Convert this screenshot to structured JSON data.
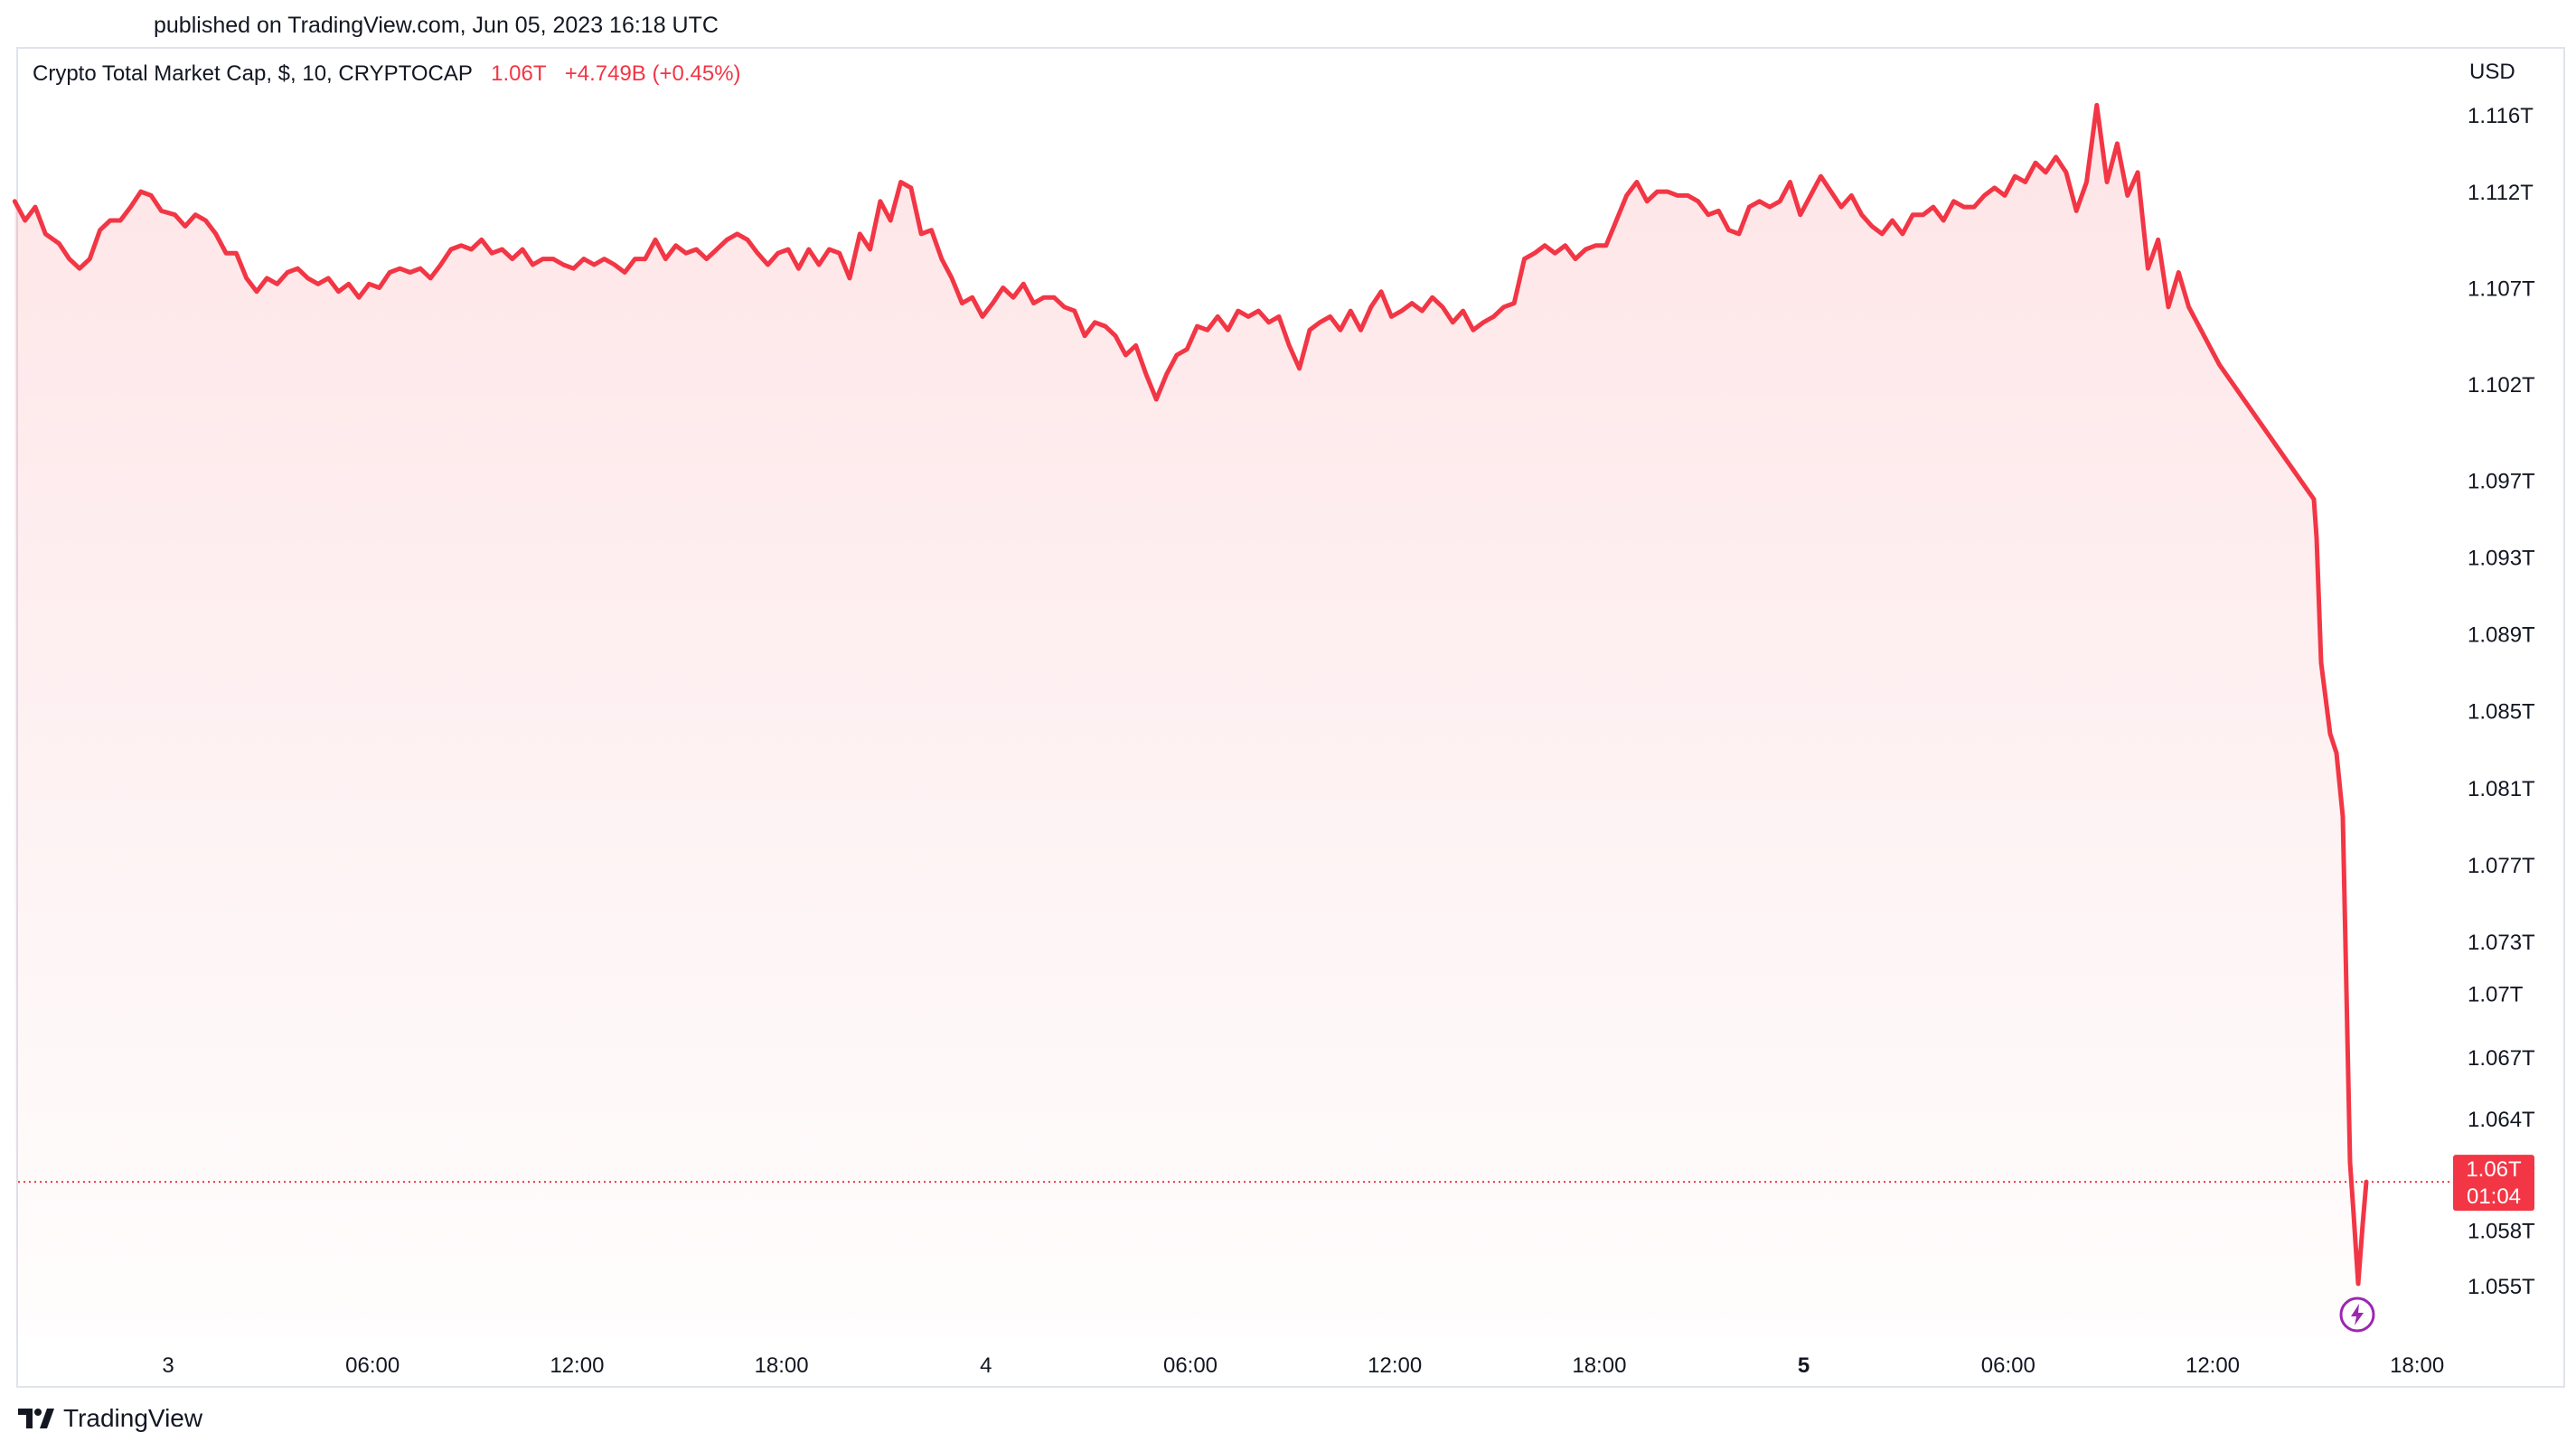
{
  "header": {
    "published": "published on TradingView.com, Jun 05, 2023 16:18 UTC"
  },
  "legend": {
    "symbol": "Crypto Total Market Cap, $, 10, CRYPTOCAP",
    "last": "1.06T",
    "change": "+4.749B (+0.45%)"
  },
  "axis": {
    "currency": "USD"
  },
  "price_label": {
    "value": "1.06T",
    "countdown": "01:04"
  },
  "footer": {
    "brand": "TradingView"
  },
  "colors": {
    "line": "#f23645",
    "fill": "#f23645",
    "badge": "#f23645",
    "alert": "#9c27b0"
  },
  "chart_data": {
    "type": "area",
    "title": "Crypto Total Market Cap, $, 10, CRYPTOCAP",
    "y_unit": "USD (trillions)",
    "ylim": [
      1.052,
      1.118
    ],
    "y_ticks": [
      {
        "label": "1.116T",
        "value": 1.116
      },
      {
        "label": "1.112T",
        "value": 1.112
      },
      {
        "label": "1.107T",
        "value": 1.107
      },
      {
        "label": "1.102T",
        "value": 1.102
      },
      {
        "label": "1.097T",
        "value": 1.097
      },
      {
        "label": "1.093T",
        "value": 1.093
      },
      {
        "label": "1.089T",
        "value": 1.089
      },
      {
        "label": "1.085T",
        "value": 1.085
      },
      {
        "label": "1.081T",
        "value": 1.081
      },
      {
        "label": "1.077T",
        "value": 1.077
      },
      {
        "label": "1.073T",
        "value": 1.073
      },
      {
        "label": "1.07T",
        "value": 1.0703
      },
      {
        "label": "1.067T",
        "value": 1.067
      },
      {
        "label": "1.064T",
        "value": 1.0638
      },
      {
        "label": "1.061T",
        "value": 1.0609
      },
      {
        "label": "1.058T",
        "value": 1.058
      },
      {
        "label": "1.055T",
        "value": 1.0551
      }
    ],
    "x_ticks": [
      {
        "label": "3",
        "hours": 0,
        "bold": false
      },
      {
        "label": "06:00",
        "hours": 6,
        "bold": false
      },
      {
        "label": "12:00",
        "hours": 12,
        "bold": false
      },
      {
        "label": "18:00",
        "hours": 18,
        "bold": false
      },
      {
        "label": "4",
        "hours": 24,
        "bold": false
      },
      {
        "label": "06:00",
        "hours": 30,
        "bold": false
      },
      {
        "label": "12:00",
        "hours": 36,
        "bold": false
      },
      {
        "label": "18:00",
        "hours": 42,
        "bold": false
      },
      {
        "label": "5",
        "hours": 48,
        "bold": true
      },
      {
        "label": "06:00",
        "hours": 54,
        "bold": false
      },
      {
        "label": "12:00",
        "hours": 60,
        "bold": false
      },
      {
        "label": "18:00",
        "hours": 66,
        "bold": false
      }
    ],
    "xlim": [
      -4.5,
      69.0
    ],
    "current_value": 1.0605,
    "series": [
      {
        "values": [
          [
            -4.5,
            1.1115
          ],
          [
            -4.2,
            1.1105
          ],
          [
            -3.9,
            1.1112
          ],
          [
            -3.6,
            1.1098
          ],
          [
            -3.2,
            1.1093
          ],
          [
            -2.9,
            1.1085
          ],
          [
            -2.6,
            1.108
          ],
          [
            -2.3,
            1.1085
          ],
          [
            -2.0,
            1.11
          ],
          [
            -1.7,
            1.1105
          ],
          [
            -1.4,
            1.1105
          ],
          [
            -1.1,
            1.1112
          ],
          [
            -0.8,
            1.112
          ],
          [
            -0.5,
            1.1118
          ],
          [
            -0.2,
            1.111
          ],
          [
            0.2,
            1.1108
          ],
          [
            0.5,
            1.1102
          ],
          [
            0.8,
            1.1108
          ],
          [
            1.1,
            1.1105
          ],
          [
            1.4,
            1.1098
          ],
          [
            1.7,
            1.1088
          ],
          [
            2.0,
            1.1088
          ],
          [
            2.3,
            1.1075
          ],
          [
            2.6,
            1.1068
          ],
          [
            2.9,
            1.1075
          ],
          [
            3.2,
            1.1072
          ],
          [
            3.5,
            1.1078
          ],
          [
            3.8,
            1.108
          ],
          [
            4.1,
            1.1075
          ],
          [
            4.4,
            1.1072
          ],
          [
            4.7,
            1.1075
          ],
          [
            5.0,
            1.1068
          ],
          [
            5.3,
            1.1072
          ],
          [
            5.6,
            1.1065
          ],
          [
            5.9,
            1.1072
          ],
          [
            6.2,
            1.107
          ],
          [
            6.5,
            1.1078
          ],
          [
            6.8,
            1.108
          ],
          [
            7.1,
            1.1078
          ],
          [
            7.4,
            1.108
          ],
          [
            7.7,
            1.1075
          ],
          [
            8.0,
            1.1082
          ],
          [
            8.3,
            1.109
          ],
          [
            8.6,
            1.1092
          ],
          [
            8.9,
            1.109
          ],
          [
            9.2,
            1.1095
          ],
          [
            9.5,
            1.1088
          ],
          [
            9.8,
            1.109
          ],
          [
            10.1,
            1.1085
          ],
          [
            10.4,
            1.109
          ],
          [
            10.7,
            1.1082
          ],
          [
            11.0,
            1.1085
          ],
          [
            11.3,
            1.1085
          ],
          [
            11.6,
            1.1082
          ],
          [
            11.9,
            1.108
          ],
          [
            12.2,
            1.1085
          ],
          [
            12.5,
            1.1082
          ],
          [
            12.8,
            1.1085
          ],
          [
            13.1,
            1.1082
          ],
          [
            13.4,
            1.1078
          ],
          [
            13.7,
            1.1085
          ],
          [
            14.0,
            1.1085
          ],
          [
            14.3,
            1.1095
          ],
          [
            14.6,
            1.1085
          ],
          [
            14.9,
            1.1092
          ],
          [
            15.2,
            1.1088
          ],
          [
            15.5,
            1.109
          ],
          [
            15.8,
            1.1085
          ],
          [
            16.1,
            1.109
          ],
          [
            16.4,
            1.1095
          ],
          [
            16.7,
            1.1098
          ],
          [
            17.0,
            1.1095
          ],
          [
            17.3,
            1.1088
          ],
          [
            17.6,
            1.1082
          ],
          [
            17.9,
            1.1088
          ],
          [
            18.2,
            1.109
          ],
          [
            18.5,
            1.108
          ],
          [
            18.8,
            1.109
          ],
          [
            19.1,
            1.1082
          ],
          [
            19.4,
            1.109
          ],
          [
            19.7,
            1.1088
          ],
          [
            20.0,
            1.1075
          ],
          [
            20.3,
            1.1098
          ],
          [
            20.6,
            1.109
          ],
          [
            20.9,
            1.1115
          ],
          [
            21.2,
            1.1105
          ],
          [
            21.5,
            1.1125
          ],
          [
            21.8,
            1.1122
          ],
          [
            22.1,
            1.1098
          ],
          [
            22.4,
            1.11
          ],
          [
            22.7,
            1.1085
          ],
          [
            23.0,
            1.1075
          ],
          [
            23.3,
            1.1062
          ],
          [
            23.6,
            1.1065
          ],
          [
            23.9,
            1.1055
          ],
          [
            24.2,
            1.1062
          ],
          [
            24.5,
            1.107
          ],
          [
            24.8,
            1.1065
          ],
          [
            25.1,
            1.1072
          ],
          [
            25.4,
            1.1062
          ],
          [
            25.7,
            1.1065
          ],
          [
            26.0,
            1.1065
          ],
          [
            26.3,
            1.106
          ],
          [
            26.6,
            1.1058
          ],
          [
            26.9,
            1.1045
          ],
          [
            27.2,
            1.1052
          ],
          [
            27.5,
            1.105
          ],
          [
            27.8,
            1.1045
          ],
          [
            28.1,
            1.1035
          ],
          [
            28.4,
            1.104
          ],
          [
            28.7,
            1.1025
          ],
          [
            29.0,
            1.1012
          ],
          [
            29.3,
            1.1025
          ],
          [
            29.6,
            1.1035
          ],
          [
            29.9,
            1.1038
          ],
          [
            30.2,
            1.105
          ],
          [
            30.5,
            1.1048
          ],
          [
            30.8,
            1.1055
          ],
          [
            31.1,
            1.1048
          ],
          [
            31.4,
            1.1058
          ],
          [
            31.7,
            1.1055
          ],
          [
            32.0,
            1.1058
          ],
          [
            32.3,
            1.1052
          ],
          [
            32.6,
            1.1055
          ],
          [
            32.9,
            1.104
          ],
          [
            33.2,
            1.1028
          ],
          [
            33.5,
            1.1048
          ],
          [
            33.8,
            1.1052
          ],
          [
            34.1,
            1.1055
          ],
          [
            34.4,
            1.1048
          ],
          [
            34.7,
            1.1058
          ],
          [
            35.0,
            1.1048
          ],
          [
            35.3,
            1.106
          ],
          [
            35.6,
            1.1068
          ],
          [
            35.9,
            1.1055
          ],
          [
            36.2,
            1.1058
          ],
          [
            36.5,
            1.1062
          ],
          [
            36.8,
            1.1058
          ],
          [
            37.1,
            1.1065
          ],
          [
            37.4,
            1.106
          ],
          [
            37.7,
            1.1052
          ],
          [
            38.0,
            1.1058
          ],
          [
            38.3,
            1.1048
          ],
          [
            38.6,
            1.1052
          ],
          [
            38.9,
            1.1055
          ],
          [
            39.2,
            1.106
          ],
          [
            39.5,
            1.1062
          ],
          [
            39.8,
            1.1085
          ],
          [
            40.1,
            1.1088
          ],
          [
            40.4,
            1.1092
          ],
          [
            40.7,
            1.1088
          ],
          [
            41.0,
            1.1092
          ],
          [
            41.3,
            1.1085
          ],
          [
            41.6,
            1.109
          ],
          [
            41.9,
            1.1092
          ],
          [
            42.2,
            1.1092
          ],
          [
            42.5,
            1.1105
          ],
          [
            42.8,
            1.1118
          ],
          [
            43.1,
            1.1125
          ],
          [
            43.4,
            1.1115
          ],
          [
            43.7,
            1.112
          ],
          [
            44.0,
            1.112
          ],
          [
            44.3,
            1.1118
          ],
          [
            44.6,
            1.1118
          ],
          [
            44.9,
            1.1115
          ],
          [
            45.2,
            1.1108
          ],
          [
            45.5,
            1.111
          ],
          [
            45.8,
            1.11
          ],
          [
            46.1,
            1.1098
          ],
          [
            46.4,
            1.1112
          ],
          [
            46.7,
            1.1115
          ],
          [
            47.0,
            1.1112
          ],
          [
            47.3,
            1.1115
          ],
          [
            47.6,
            1.1125
          ],
          [
            47.9,
            1.1108
          ],
          [
            48.2,
            1.1118
          ],
          [
            48.5,
            1.1128
          ],
          [
            48.8,
            1.112
          ],
          [
            49.1,
            1.1112
          ],
          [
            49.4,
            1.1118
          ],
          [
            49.7,
            1.1108
          ],
          [
            50.0,
            1.1102
          ],
          [
            50.3,
            1.1098
          ],
          [
            50.6,
            1.1105
          ],
          [
            50.9,
            1.1098
          ],
          [
            51.2,
            1.1108
          ],
          [
            51.5,
            1.1108
          ],
          [
            51.8,
            1.1112
          ],
          [
            52.1,
            1.1105
          ],
          [
            52.4,
            1.1115
          ],
          [
            52.7,
            1.1112
          ],
          [
            53.0,
            1.1112
          ],
          [
            53.3,
            1.1118
          ],
          [
            53.6,
            1.1122
          ],
          [
            53.9,
            1.1118
          ],
          [
            54.2,
            1.1128
          ],
          [
            54.5,
            1.1125
          ],
          [
            54.8,
            1.1135
          ],
          [
            55.1,
            1.113
          ],
          [
            55.4,
            1.1138
          ],
          [
            55.7,
            1.113
          ],
          [
            56.0,
            1.111
          ],
          [
            56.3,
            1.1125
          ],
          [
            56.6,
            1.1165
          ],
          [
            56.9,
            1.1125
          ],
          [
            57.2,
            1.1145
          ],
          [
            57.5,
            1.1118
          ],
          [
            57.8,
            1.113
          ],
          [
            58.1,
            1.108
          ],
          [
            58.4,
            1.1095
          ],
          [
            58.7,
            1.106
          ],
          [
            59.0,
            1.1078
          ],
          [
            59.3,
            1.106
          ],
          [
            59.6,
            1.105
          ],
          [
            59.9,
            1.104
          ],
          [
            60.2,
            1.103
          ]
        ]
      }
    ]
  }
}
